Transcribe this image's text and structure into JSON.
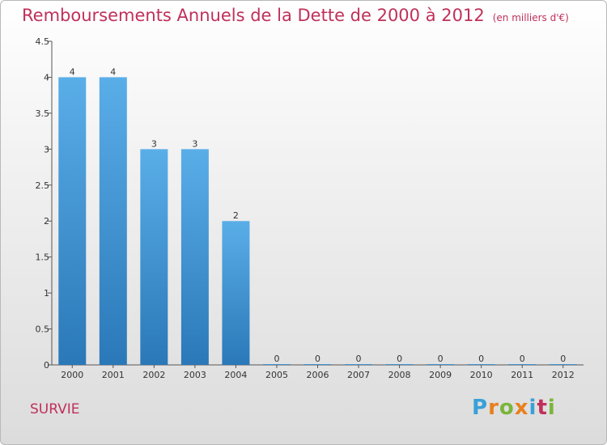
{
  "title": "Remboursements Annuels de la Dette de 2000 à 2012",
  "subtitle": "(en milliers d'€)",
  "commune": "SURVIE",
  "logo": {
    "text": "Proxiti",
    "letter_colors": [
      "#3aa0d8",
      "#e8801e",
      "#7ab53a",
      "#e8801e",
      "#3aa0d8",
      "#c0305a",
      "#7ab53a"
    ]
  },
  "colors": {
    "bar": "#3a8fd6",
    "title": "#c0305a"
  },
  "chart_data": {
    "type": "bar",
    "title": "Remboursements Annuels de la Dette de 2000 à 2012",
    "subtitle": "(en milliers d'€)",
    "categories": [
      "2000",
      "2001",
      "2002",
      "2003",
      "2004",
      "2005",
      "2006",
      "2007",
      "2008",
      "2009",
      "2010",
      "2011",
      "2012"
    ],
    "values": [
      4,
      4,
      3,
      3,
      2,
      0,
      0,
      0,
      0,
      0,
      0,
      0,
      0
    ],
    "data_labels": [
      "4",
      "4",
      "3",
      "3",
      "2",
      "0",
      "0",
      "0",
      "0",
      "0",
      "0",
      "0",
      "0"
    ],
    "y_ticks": [
      {
        "value": 0,
        "label": "0"
      },
      {
        "value": 0.5,
        "label": "0.5"
      },
      {
        "value": 1,
        "label": "1"
      },
      {
        "value": 1.5,
        "label": "1.5"
      },
      {
        "value": 2,
        "label": "2"
      },
      {
        "value": 2.5,
        "label": "2.5"
      },
      {
        "value": 3,
        "label": "3"
      },
      {
        "value": 3.5,
        "label": "3.5"
      },
      {
        "value": 4,
        "label": "4"
      },
      {
        "value": 4.5,
        "label": "4.5"
      }
    ],
    "ylim": [
      0,
      4.5
    ],
    "xlabel": "",
    "ylabel": "",
    "grid": false,
    "legend": "none"
  }
}
